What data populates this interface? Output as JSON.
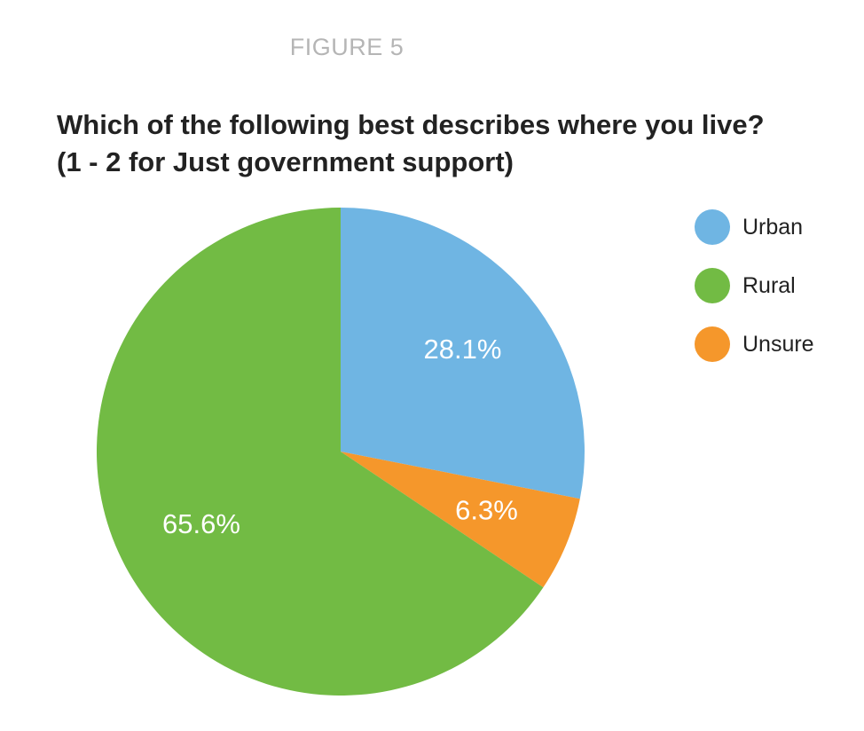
{
  "figure_label": "FIGURE 5",
  "chart_data": {
    "type": "pie",
    "title_lines": [
      "Which of the following best describes where you live?",
      "(1 - 2 for Just government support)"
    ],
    "categories": [
      "Urban",
      "Rural",
      "Unsure"
    ],
    "values": [
      28.1,
      65.6,
      6.3
    ],
    "value_labels": [
      "28.1%",
      "65.6%",
      "6.3%"
    ],
    "colors": [
      "#6fb5e3",
      "#72bb44",
      "#f5972b"
    ],
    "slice_order_clockwise_from_top": [
      "Urban",
      "Unsure",
      "Rural"
    ],
    "legend_position": "right"
  }
}
